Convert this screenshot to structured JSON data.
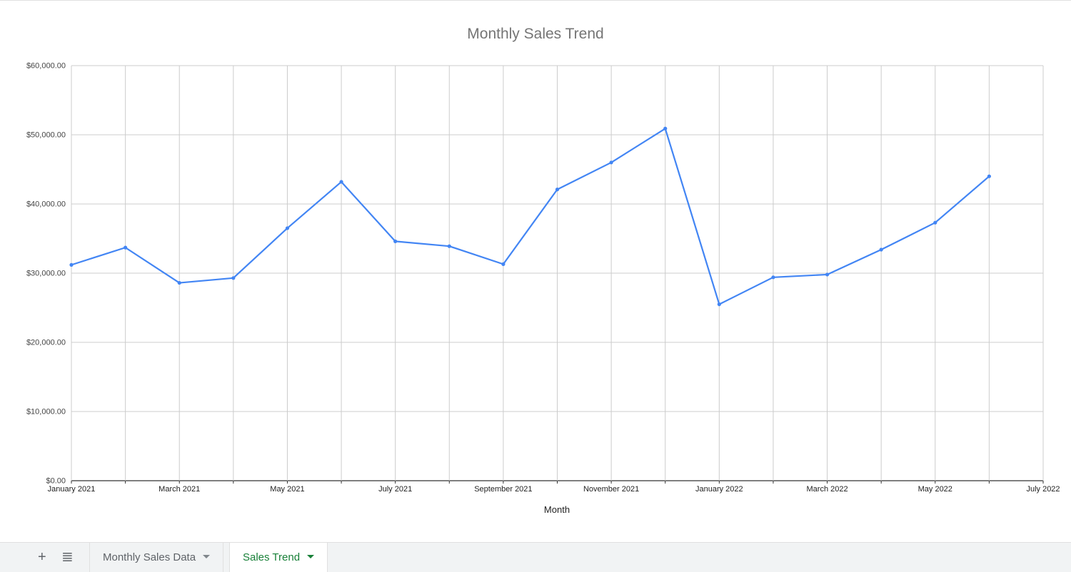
{
  "chart_data": {
    "type": "line",
    "title": "Monthly Sales Trend",
    "xlabel": "Month",
    "ylabel": "",
    "x": [
      "2021-01",
      "2021-02",
      "2021-03",
      "2021-04",
      "2021-05",
      "2021-06",
      "2021-07",
      "2021-08",
      "2021-09",
      "2021-10",
      "2021-11",
      "2021-12",
      "2022-01",
      "2022-02",
      "2022-03",
      "2022-04",
      "2022-05",
      "2022-06"
    ],
    "series": [
      {
        "values": [
          31200,
          33700,
          28600,
          29300,
          36500,
          43200,
          34600,
          33900,
          31300,
          42100,
          46000,
          50900,
          25500,
          29400,
          29800,
          33400,
          37300,
          44000
        ],
        "color": "#4285f4"
      }
    ],
    "ylim": [
      0,
      60000
    ],
    "xlim": [
      "2021-01",
      "2022-07"
    ],
    "y_ticks": [
      "$0.00",
      "$10,000.00",
      "$20,000.00",
      "$30,000.00",
      "$40,000.00",
      "$50,000.00",
      "$60,000.00"
    ],
    "x_ticks": [
      "January 2021",
      "March 2021",
      "May 2021",
      "July 2021",
      "September 2021",
      "November 2021",
      "January 2022",
      "March 2022",
      "May 2022",
      "July 2022"
    ],
    "grid": true,
    "legend": "none"
  },
  "tabbar": {
    "add_icon": "plus-icon",
    "add_glyph": "+",
    "list_icon": "list-icon",
    "list_glyph": "≣",
    "tabs": [
      {
        "label": "Monthly Sales Data",
        "active": false
      },
      {
        "label": "Sales Trend",
        "active": true
      }
    ]
  }
}
